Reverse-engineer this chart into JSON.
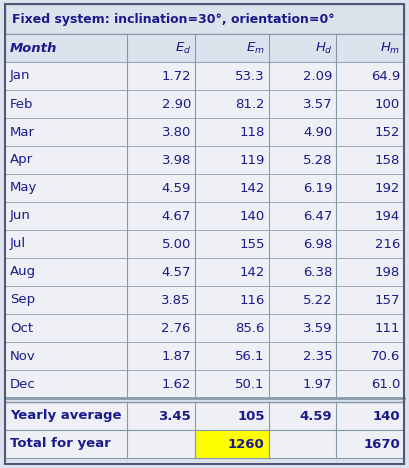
{
  "title": "Fixed system: inclination=30°, orientation=0°",
  "col_labels": [
    "Month",
    "$E_d$",
    "$E_m$",
    "$H_d$",
    "$H_m$"
  ],
  "months": [
    "Jan",
    "Feb",
    "Mar",
    "Apr",
    "May",
    "Jun",
    "Jul",
    "Aug",
    "Sep",
    "Oct",
    "Nov",
    "Dec"
  ],
  "Ed": [
    "1.72",
    "2.90",
    "3.80",
    "3.98",
    "4.59",
    "4.67",
    "5.00",
    "4.57",
    "3.85",
    "2.76",
    "1.87",
    "1.62"
  ],
  "Em": [
    "53.3",
    "81.2",
    "118",
    "119",
    "142",
    "140",
    "155",
    "142",
    "116",
    "85.6",
    "56.1",
    "50.1"
  ],
  "Hd": [
    "2.09",
    "3.57",
    "4.90",
    "5.28",
    "6.19",
    "6.47",
    "6.98",
    "6.38",
    "5.22",
    "3.59",
    "2.35",
    "1.97"
  ],
  "Hm": [
    "64.9",
    "100",
    "152",
    "158",
    "192",
    "194",
    "216",
    "198",
    "157",
    "111",
    "70.6",
    "61.0"
  ],
  "yearly_avg": {
    "Ed": "3.45",
    "Em": "105",
    "Hd": "4.59",
    "Hm": "140"
  },
  "total_year": {
    "Em": "1260",
    "Hm": "1670"
  },
  "bg_color": "#dde3ed",
  "body_bg": "#eef0f5",
  "yellow_bg": "#ffff00",
  "text_color": "#1a1a8c",
  "line_color": "#8899aa"
}
